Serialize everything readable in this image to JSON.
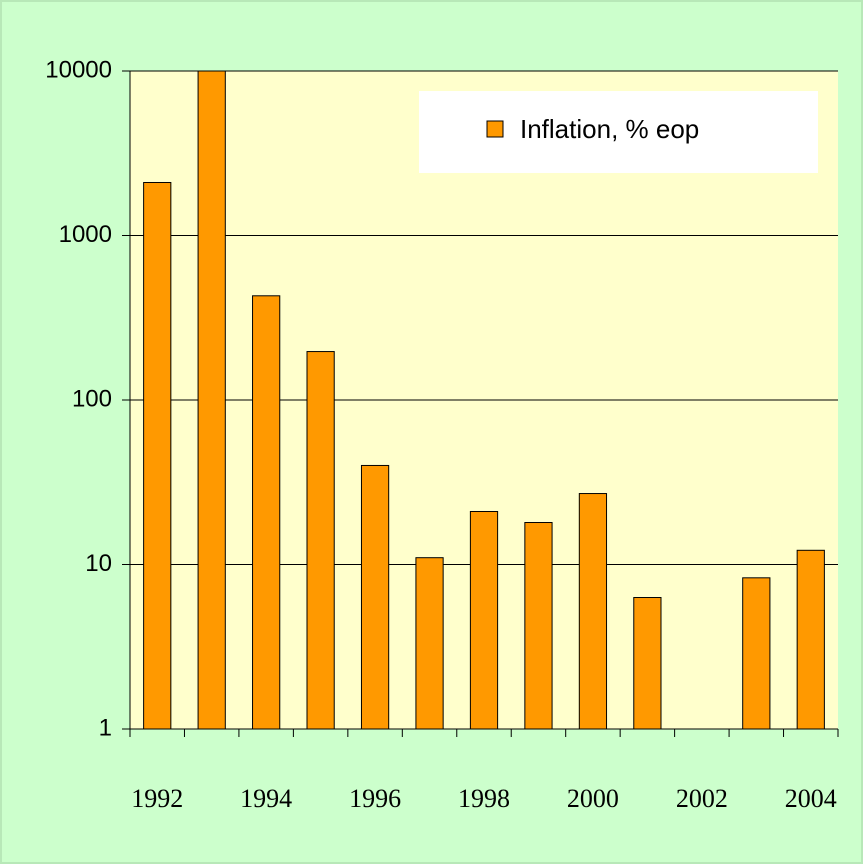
{
  "chart_data": {
    "type": "bar",
    "categories": [
      "1992",
      null,
      "1994",
      null,
      "1996",
      null,
      "1998",
      null,
      "2000",
      null,
      "2002",
      null,
      "2004"
    ],
    "series": [
      {
        "name": "Inflation, % eop",
        "color": "#ff9900",
        "values": [
          2100,
          10000,
          430,
          197,
          40,
          11,
          21,
          18,
          27,
          6.3,
          null,
          8.3,
          12.2
        ]
      }
    ],
    "ylim": [
      1,
      10000
    ],
    "yticks": [
      1,
      10,
      100,
      1000,
      10000
    ],
    "log_scale": true,
    "grid": true,
    "legend": "upper right"
  }
}
